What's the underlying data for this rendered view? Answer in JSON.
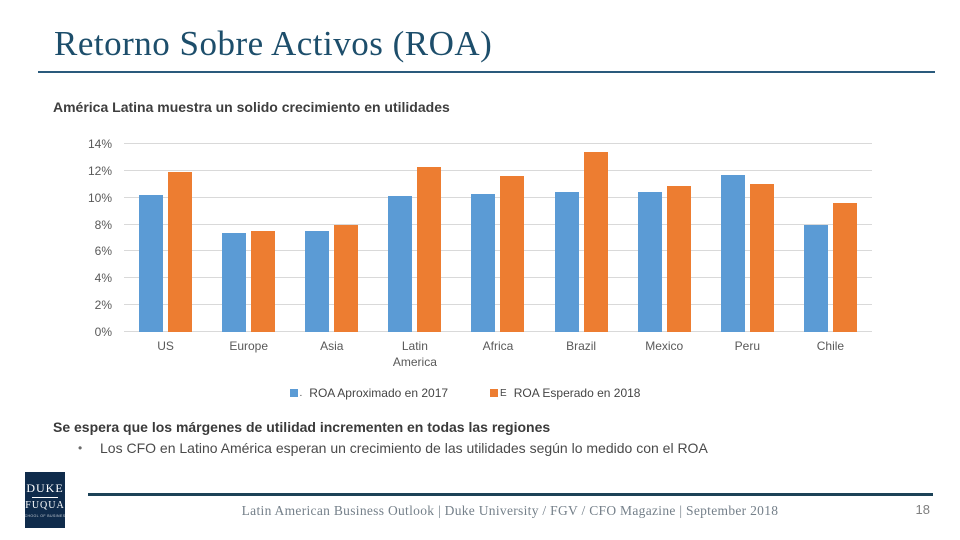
{
  "slide": {
    "title": "Retorno Sobre Activos (ROA)",
    "subtitle": "América Latina muestra un solido crecimiento en utilidades",
    "takeaway_heading": "Se espera que los márgenes de utilidad incrementen en todas las regiones",
    "bullet_glyph": "•",
    "takeaway_bullet": "Los CFO en Latino América esperan un crecimiento de las utilidades según lo medido con el ROA",
    "footer_citation": "Latin American Business Outlook | Duke University / FGV / CFO Magazine | September 2018",
    "page_number": "18",
    "logo": {
      "line1": "DUKE",
      "line2": "FUQUA",
      "line3": "SCHOOL OF BUSINESS"
    }
  },
  "colors": {
    "title_teal": "#1d4e6b",
    "rule_teal": "#2a5a7c",
    "footer_navy": "#1c4257",
    "logo_navy": "#0f2b4b",
    "bar_blue": "#5b9bd5",
    "bar_orange": "#ed7d31",
    "gridline_gray": "#d9d9d9",
    "axis_text_gray": "#595959"
  },
  "chart_data": {
    "type": "bar",
    "title": "",
    "xlabel": "",
    "ylabel": "",
    "categories": [
      "US",
      "Europe",
      "Asia",
      "Latin America",
      "Africa",
      "Brazil",
      "Mexico",
      "Peru",
      "Chile"
    ],
    "series": [
      {
        "name": "ROA Aproximado en 2017",
        "color": "#5b9bd5",
        "values": [
          10.2,
          7.4,
          7.5,
          10.1,
          10.3,
          10.4,
          10.4,
          11.7,
          8.0
        ]
      },
      {
        "name": "ROA Esperado en 2018",
        "color": "#ed7d31",
        "values": [
          11.9,
          7.5,
          8.0,
          12.3,
          11.6,
          13.4,
          10.9,
          11.0,
          9.6
        ]
      }
    ],
    "ylim": [
      0,
      14
    ],
    "ytick_step": 2,
    "ytick_labels": [
      "0%",
      "2%",
      "4%",
      "6%",
      "8%",
      "10%",
      "12%",
      "14%"
    ],
    "grid": true,
    "legend_position": "bottom",
    "legend_artifacts": {
      "series0_prefix": ".",
      "series1_prefix": "E"
    }
  }
}
